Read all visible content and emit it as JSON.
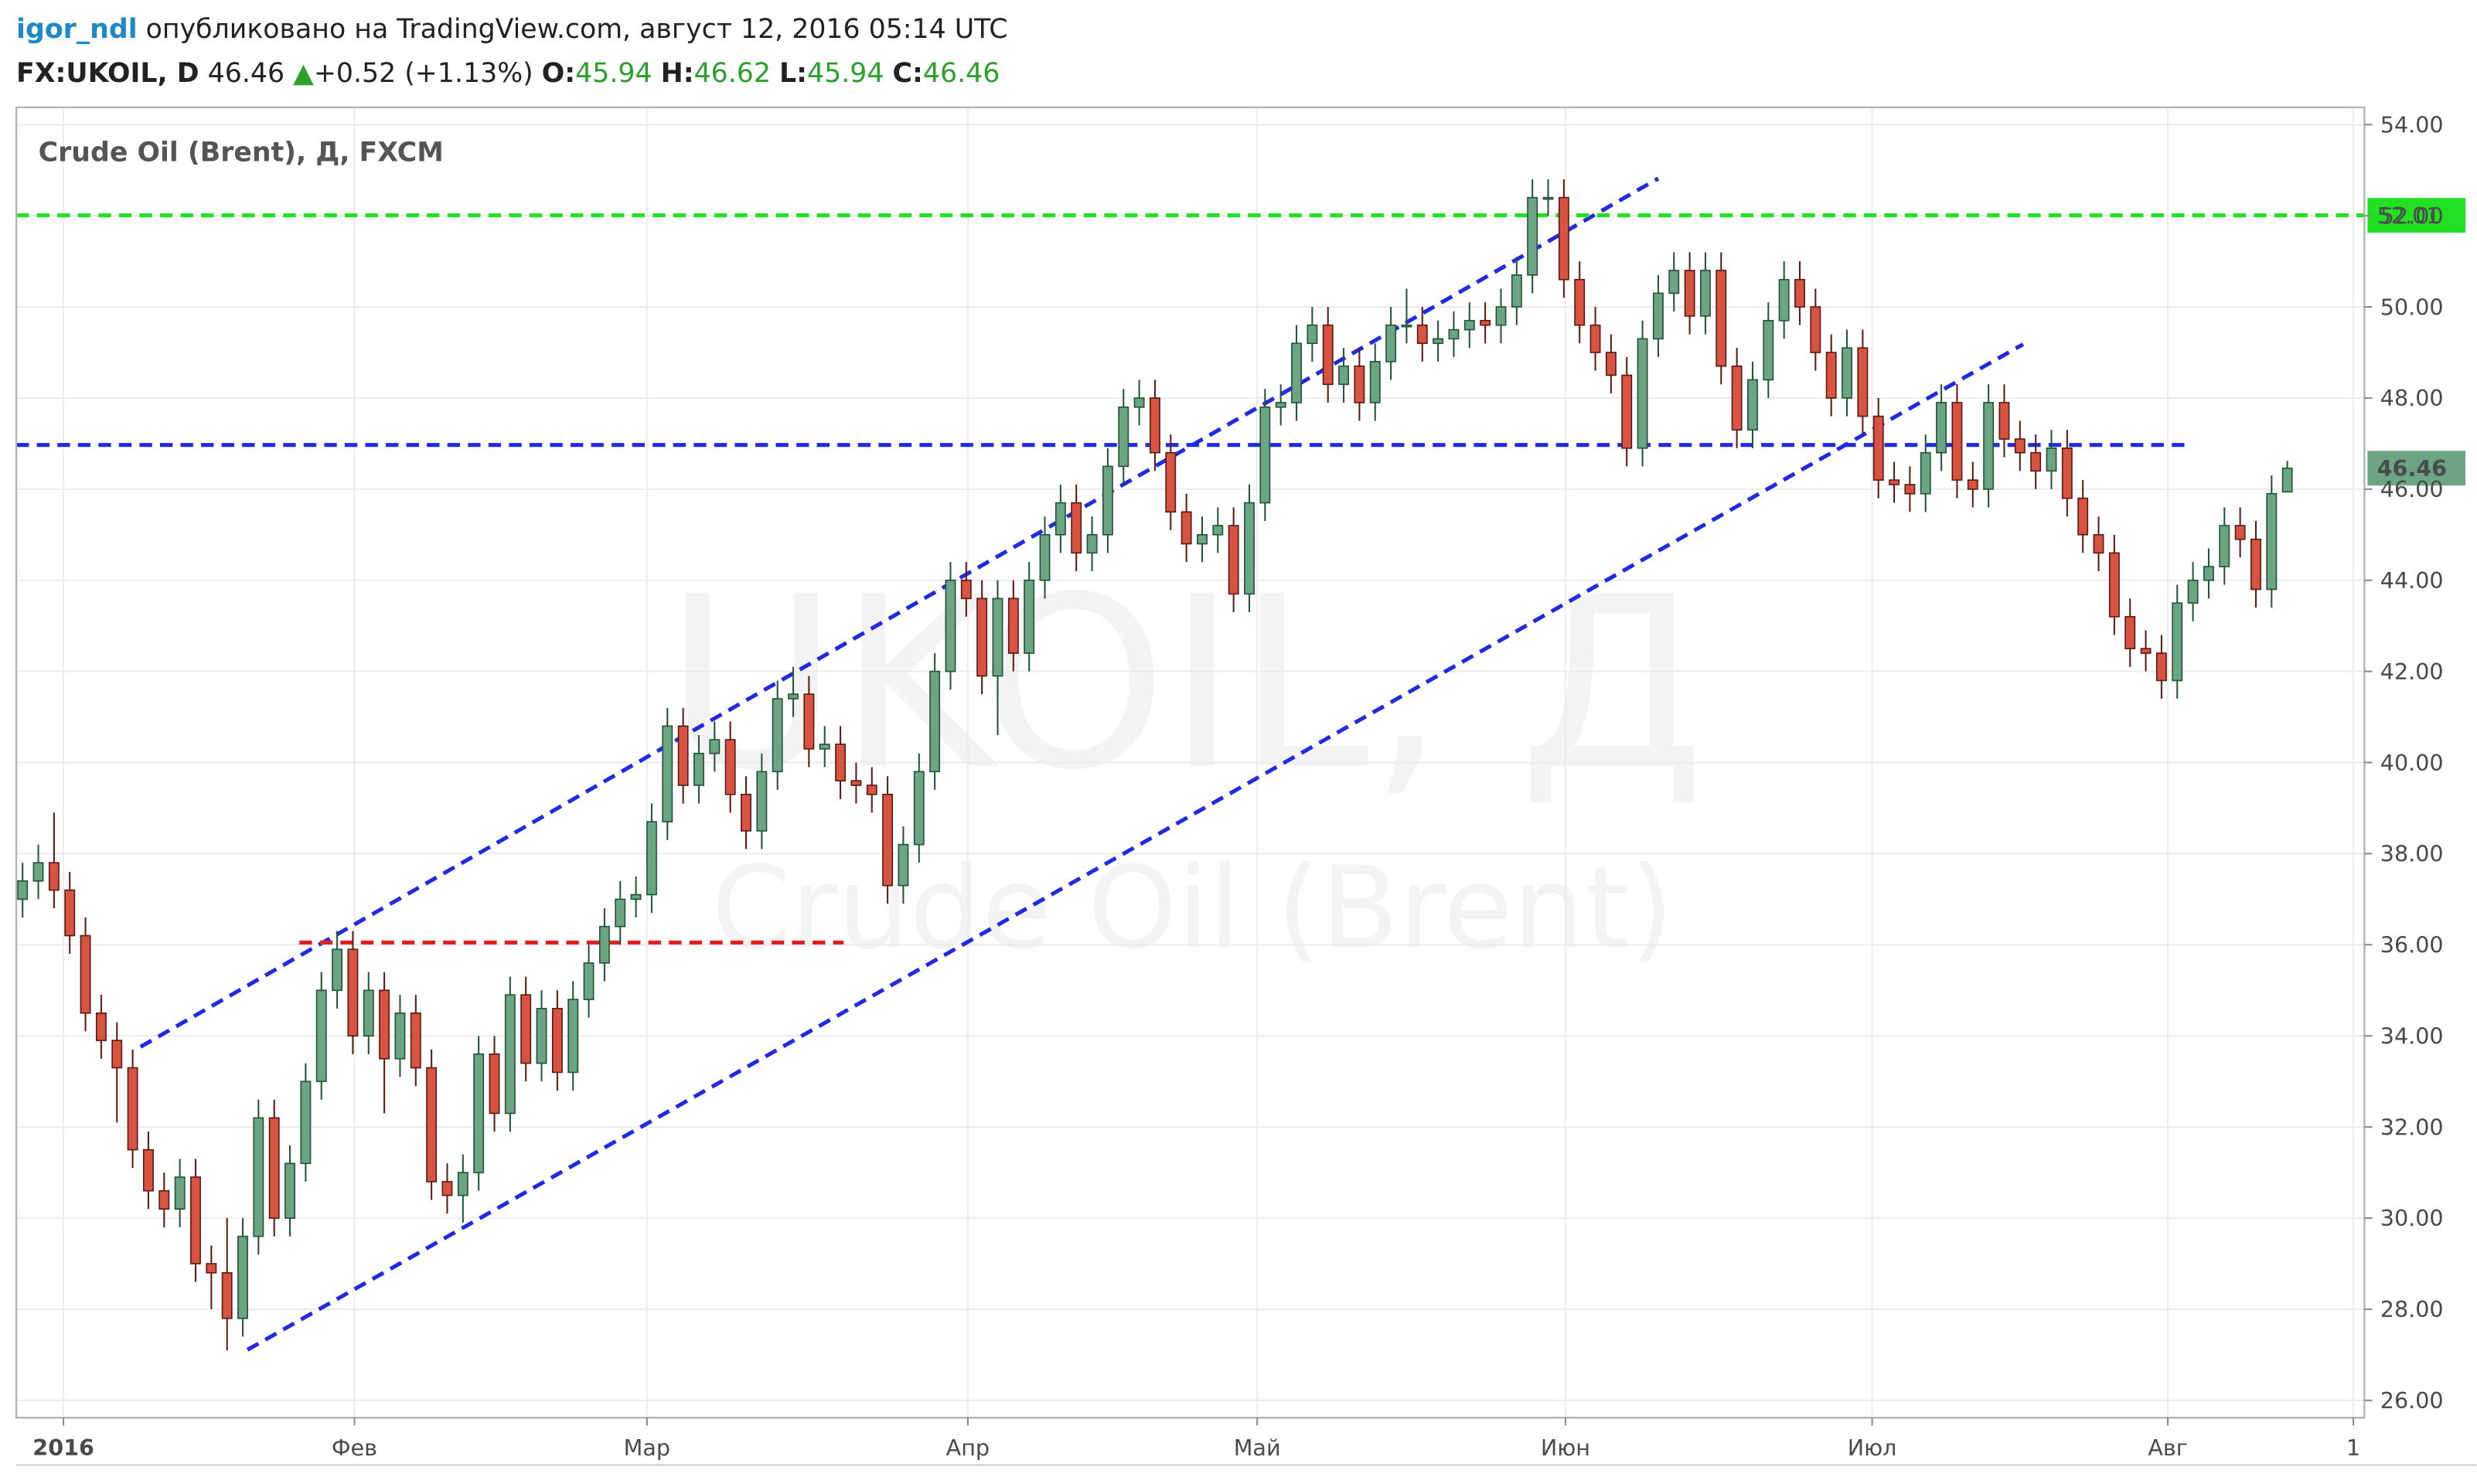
{
  "header": {
    "user": "igor_ndl",
    "published": "опубликовано на TradingView.com, август 12, 2016 05:14 UTC",
    "symbol": "FX:UKOIL, D",
    "last": 46.46,
    "change": "+0.52 (+1.13%)",
    "o_label": "O:",
    "o": 45.94,
    "h_label": "H:",
    "h": 46.62,
    "l_label": "L:",
    "l": 45.94,
    "c_label": "C:",
    "c": 46.46
  },
  "chart_data": {
    "type": "candlestick",
    "title": "Crude Oil (Brent), Д, FXCM",
    "watermark": [
      "UKOIL, Д",
      "Crude Oil (Brent)"
    ],
    "open": [
      37.0,
      37.4,
      37.8,
      37.2,
      36.2,
      34.5,
      33.9,
      33.3,
      31.5,
      30.6,
      30.2,
      30.9,
      29.0,
      28.8,
      27.8,
      29.6,
      32.2,
      30.0,
      31.2,
      33.0,
      35.0,
      35.9,
      34.0,
      35.0,
      33.5,
      34.5,
      33.3,
      30.8,
      30.5,
      31.0,
      33.6,
      32.3,
      34.9,
      33.4,
      34.6,
      33.2,
      34.8,
      35.6,
      36.4,
      37.0,
      37.1,
      38.7,
      40.8,
      39.5,
      40.2,
      40.5,
      39.3,
      38.5,
      39.8,
      41.4,
      41.5,
      40.3,
      40.4,
      39.6,
      39.5,
      39.3,
      37.3,
      38.2,
      39.8,
      42.0,
      44.0,
      43.6,
      41.9,
      43.6,
      42.4,
      44.0,
      45.0,
      45.7,
      44.6,
      45.0,
      46.5,
      47.8,
      48.0,
      46.8,
      45.5,
      44.8,
      45.0,
      45.2,
      43.7,
      45.7,
      47.8,
      47.9,
      49.2,
      49.6,
      48.3,
      48.7,
      47.9,
      48.8,
      49.6,
      49.6,
      49.2,
      49.3,
      49.5,
      49.7,
      49.6,
      50.0,
      50.7,
      52.4,
      52.4,
      50.6,
      49.6,
      49.0,
      48.5,
      46.9,
      49.3,
      50.3,
      50.8,
      49.8,
      50.8,
      48.7,
      47.3,
      48.4,
      49.7,
      50.6,
      50.0,
      49.0,
      48.0,
      49.1,
      47.6,
      46.2,
      46.1,
      45.9,
      46.8,
      47.9,
      46.2,
      46.0,
      47.9,
      47.1,
      46.8,
      46.4,
      46.9,
      45.8,
      45.0,
      44.6,
      43.2,
      42.5,
      42.4,
      41.8,
      43.5,
      44.0,
      44.3,
      45.2,
      44.9,
      43.8,
      45.94
    ],
    "high": [
      37.8,
      38.2,
      38.9,
      37.6,
      36.6,
      34.9,
      34.3,
      33.7,
      31.9,
      31.0,
      31.3,
      31.3,
      29.4,
      30.0,
      30.0,
      32.6,
      32.6,
      31.6,
      33.4,
      35.4,
      36.3,
      36.3,
      35.4,
      35.4,
      34.9,
      34.9,
      33.7,
      31.2,
      31.4,
      34.0,
      34.0,
      35.3,
      35.3,
      35.0,
      35.0,
      35.2,
      36.0,
      36.8,
      37.4,
      37.5,
      39.1,
      41.2,
      41.2,
      40.6,
      40.9,
      40.9,
      39.7,
      40.2,
      41.8,
      42.1,
      41.9,
      40.8,
      40.8,
      40.0,
      39.9,
      39.7,
      38.6,
      40.2,
      42.4,
      44.4,
      44.4,
      44.0,
      44.0,
      44.0,
      44.4,
      45.4,
      46.1,
      46.1,
      45.4,
      46.9,
      48.2,
      48.4,
      48.4,
      47.2,
      45.9,
      45.4,
      45.6,
      45.6,
      46.1,
      48.2,
      48.3,
      49.6,
      50.0,
      50.0,
      49.1,
      49.1,
      49.2,
      50.0,
      50.4,
      50.0,
      49.7,
      49.9,
      50.1,
      50.1,
      50.4,
      51.1,
      52.8,
      52.8,
      52.8,
      51.0,
      50.0,
      49.4,
      48.9,
      49.7,
      50.7,
      51.2,
      51.2,
      51.2,
      51.2,
      49.1,
      48.8,
      50.1,
      51.0,
      51.0,
      50.4,
      49.4,
      49.5,
      49.5,
      48.0,
      46.6,
      46.5,
      47.2,
      48.3,
      48.3,
      46.6,
      48.3,
      48.3,
      47.5,
      47.2,
      47.3,
      47.3,
      46.2,
      45.4,
      45.0,
      43.6,
      42.9,
      42.8,
      43.9,
      44.4,
      44.7,
      45.6,
      45.6,
      45.3,
      46.3,
      46.62
    ],
    "low": [
      36.6,
      37.0,
      36.8,
      35.8,
      34.1,
      33.5,
      32.1,
      31.1,
      30.2,
      29.8,
      29.8,
      28.6,
      28.0,
      27.1,
      27.4,
      29.2,
      29.6,
      29.6,
      30.8,
      32.6,
      34.6,
      33.6,
      33.6,
      32.3,
      33.1,
      32.9,
      30.4,
      30.1,
      29.9,
      30.6,
      31.9,
      31.9,
      33.0,
      33.0,
      32.8,
      32.8,
      34.4,
      35.2,
      36.0,
      36.6,
      36.7,
      38.3,
      39.1,
      39.1,
      39.8,
      38.9,
      38.1,
      38.1,
      39.4,
      41.0,
      39.9,
      39.9,
      39.2,
      39.1,
      38.9,
      36.9,
      36.9,
      37.8,
      39.4,
      41.6,
      43.2,
      41.5,
      40.6,
      42.0,
      42.0,
      43.6,
      44.6,
      44.2,
      44.2,
      44.6,
      46.1,
      47.4,
      46.4,
      45.1,
      44.4,
      44.4,
      44.6,
      43.3,
      43.3,
      45.3,
      47.4,
      47.5,
      48.8,
      47.9,
      47.9,
      47.5,
      47.5,
      48.4,
      49.2,
      48.8,
      48.8,
      48.9,
      49.1,
      49.2,
      49.2,
      49.6,
      50.3,
      52.0,
      50.2,
      49.2,
      48.6,
      48.1,
      46.5,
      46.5,
      48.9,
      49.9,
      49.4,
      49.4,
      48.3,
      46.9,
      46.9,
      48.0,
      49.3,
      49.6,
      48.6,
      47.6,
      47.6,
      47.2,
      45.8,
      45.7,
      45.5,
      45.5,
      46.4,
      45.8,
      45.6,
      45.6,
      46.7,
      46.4,
      46.0,
      46.0,
      45.4,
      44.6,
      44.2,
      42.8,
      42.1,
      42.0,
      41.4,
      41.4,
      43.1,
      43.6,
      43.9,
      44.5,
      43.4,
      43.4,
      45.94
    ],
    "close": [
      37.4,
      37.8,
      37.2,
      36.2,
      34.5,
      33.9,
      33.3,
      31.5,
      30.6,
      30.2,
      30.9,
      29.0,
      28.8,
      27.8,
      29.6,
      32.2,
      30.0,
      31.2,
      33.0,
      35.0,
      35.9,
      34.0,
      35.0,
      33.5,
      34.5,
      33.3,
      30.8,
      30.5,
      31.0,
      33.6,
      32.3,
      34.9,
      33.4,
      34.6,
      33.2,
      34.8,
      35.6,
      36.4,
      37.0,
      37.1,
      38.7,
      40.8,
      39.5,
      40.2,
      40.5,
      39.3,
      38.5,
      39.8,
      41.4,
      41.5,
      40.3,
      40.4,
      39.6,
      39.5,
      39.3,
      37.3,
      38.2,
      39.8,
      42.0,
      44.0,
      43.6,
      41.9,
      43.6,
      42.4,
      44.0,
      45.0,
      45.7,
      44.6,
      45.0,
      46.5,
      47.8,
      48.0,
      46.8,
      45.5,
      44.8,
      45.0,
      45.2,
      43.7,
      45.7,
      47.8,
      47.9,
      49.2,
      49.6,
      48.3,
      48.7,
      47.9,
      48.8,
      49.6,
      49.6,
      49.2,
      49.3,
      49.5,
      49.7,
      49.6,
      50.0,
      50.7,
      52.4,
      52.4,
      50.6,
      49.6,
      49.0,
      48.5,
      46.9,
      49.3,
      50.3,
      50.8,
      49.8,
      50.8,
      48.7,
      47.3,
      48.4,
      49.7,
      50.6,
      50.0,
      49.0,
      48.0,
      49.1,
      47.6,
      46.2,
      46.1,
      45.9,
      46.8,
      47.9,
      46.2,
      46.0,
      47.9,
      47.1,
      46.8,
      46.4,
      46.9,
      45.8,
      45.0,
      44.6,
      43.2,
      42.5,
      42.4,
      41.8,
      43.5,
      44.0,
      44.3,
      45.2,
      44.9,
      43.8,
      45.9,
      46.46
    ],
    "up_color": "#6ba583",
    "down_color": "#d75442",
    "xlim": [
      -0.4,
      148.9
    ],
    "xticks": [
      {
        "value": 2.6,
        "label": "2016"
      },
      {
        "value": 21.1,
        "label": "Фев"
      },
      {
        "value": 39.7,
        "label": "Мар"
      },
      {
        "value": 60.1,
        "label": "Апр"
      },
      {
        "value": 78.5,
        "label": "Май"
      },
      {
        "value": 98.1,
        "label": "Июн"
      },
      {
        "value": 117.6,
        "label": "Июл"
      },
      {
        "value": 136.4,
        "label": "Авг"
      },
      {
        "value": 148.2,
        "label": "1"
      }
    ],
    "ylim": [
      25.62,
      54.38
    ],
    "yticks": [
      {
        "value": 26,
        "label": "26.00"
      },
      {
        "value": 28,
        "label": "28.00"
      },
      {
        "value": 30,
        "label": "30.00"
      },
      {
        "value": 32,
        "label": "32.00"
      },
      {
        "value": 34,
        "label": "34.00"
      },
      {
        "value": 36,
        "label": "36.00"
      },
      {
        "value": 38,
        "label": "38.00"
      },
      {
        "value": 40,
        "label": "40.00"
      },
      {
        "value": 42,
        "label": "42.00"
      },
      {
        "value": 44,
        "label": "44.00"
      },
      {
        "value": 46,
        "label": "46.00"
      },
      {
        "value": 48,
        "label": "48.00"
      },
      {
        "value": 50,
        "label": "50.00"
      },
      {
        "value": 52,
        "label": "52.00"
      },
      {
        "value": 54,
        "label": "54.00"
      }
    ],
    "grid": true,
    "hlines": [
      {
        "value": 52.01,
        "color": "#22e022"
      }
    ],
    "last_color": "#6ba583",
    "drawings": [
      {
        "x": [
          7.5,
          104
        ],
        "y": [
          33.76,
          52.82
        ],
        "color": "#1f2be0"
      },
      {
        "x": [
          14.3,
          127.2
        ],
        "y": [
          27.11,
          49.18
        ],
        "color": "#1f2be0"
      },
      {
        "x": [
          -0.4,
          137.9
        ],
        "y": [
          46.97,
          46.97
        ],
        "color": "#1f2be0"
      },
      {
        "x": [
          17.6,
          52.2
        ],
        "y": [
          36.05,
          36.05
        ],
        "color": "#e02020"
      }
    ]
  }
}
